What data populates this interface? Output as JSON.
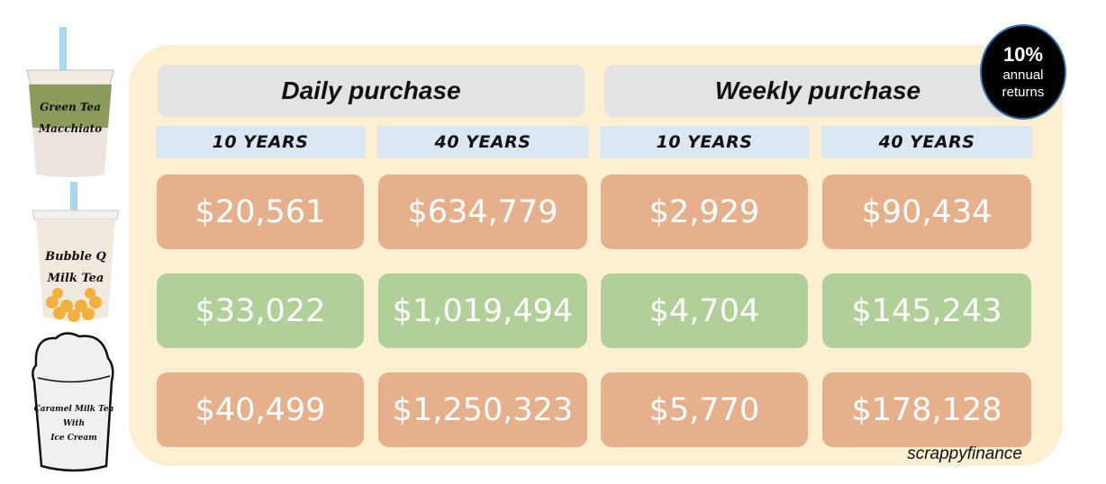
{
  "headers": [
    "Daily purchase",
    "Weekly purchase"
  ],
  "subheaders": [
    "10 YEARS",
    "40 YEARS",
    "10 YEARS",
    "40 YEARS"
  ],
  "rows": [
    {
      "drink": "Green Tea Macchiato",
      "values": [
        "$20,561",
        "$634,779",
        "$2,929",
        "$90,434"
      ],
      "color": "#e6b08d"
    },
    {
      "drink": "Bubble Q Milk Tea",
      "values": [
        "$33,022",
        "$1,019,494",
        "$4,704",
        "$145,243"
      ],
      "color": "#b1d099"
    },
    {
      "drink": "Caramel Milk Tea With Ice Cream",
      "values": [
        "$40,499",
        "$1,250,323",
        "$5,770",
        "$178,128"
      ],
      "color": "#e6b08d"
    }
  ],
  "cups": {
    "cup1": {
      "line1": "Green Tea",
      "line2": "Macchiato"
    },
    "cup2": {
      "line1": "Bubble Q",
      "line2": "Milk Tea"
    },
    "cup3": {
      "line1": "Caramel Milk Tea",
      "line2": "With",
      "line3": "Ice Cream"
    }
  },
  "badge": {
    "percent": "10%",
    "line1": "annual",
    "line2": "returns"
  },
  "brand": "scrappyfinance",
  "colors": {
    "panel": "#fcefd2",
    "header": "#e3e3e3",
    "subheader": "#dbe7f2",
    "orange": "#e6b08d",
    "green": "#b1d099"
  }
}
